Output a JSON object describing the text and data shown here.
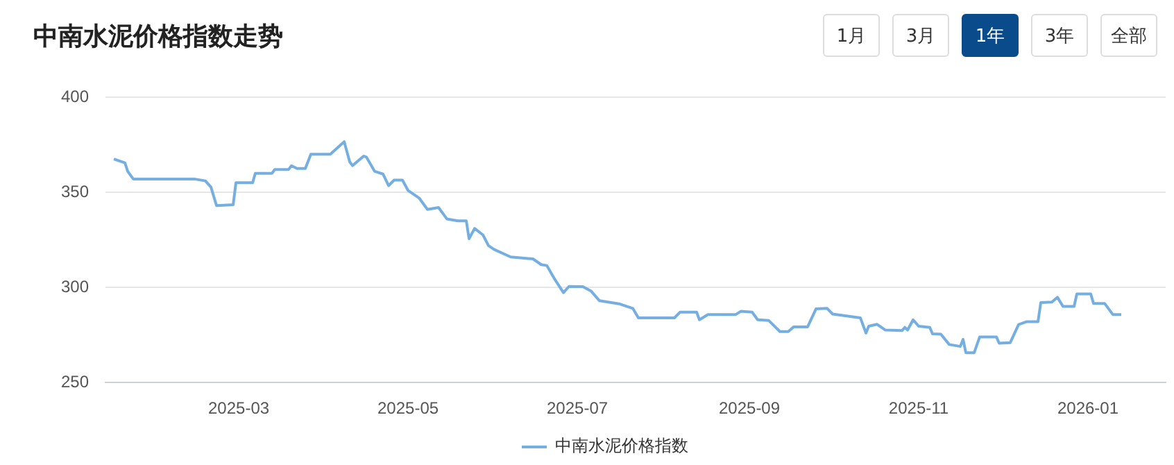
{
  "chart_data": {
    "type": "line",
    "title": "中南水泥价格指数走势",
    "annotations": [
      "1月",
      "3月",
      "1年",
      "3年",
      "全部"
    ],
    "x": [
      "2025-01-15",
      "2025-01-19",
      "2025-01-20",
      "2025-01-22",
      "2025-02-13",
      "2025-02-17",
      "2025-02-19",
      "2025-02-21",
      "2025-02-27",
      "2025-02-28",
      "2025-03-06",
      "2025-03-07",
      "2025-03-13",
      "2025-03-14",
      "2025-03-19",
      "2025-03-20",
      "2025-03-22",
      "2025-03-25",
      "2025-03-27",
      "2025-04-03",
      "2025-04-08",
      "2025-04-10",
      "2025-04-11",
      "2025-04-15",
      "2025-04-16",
      "2025-04-19",
      "2025-04-22",
      "2025-04-24",
      "2025-04-26",
      "2025-04-29",
      "2025-05-01",
      "2025-05-05",
      "2025-05-08",
      "2025-05-12",
      "2025-05-15",
      "2025-05-19",
      "2025-05-22",
      "2025-05-23",
      "2025-05-25",
      "2025-05-28",
      "2025-05-30",
      "2025-06-01",
      "2025-06-07",
      "2025-06-15",
      "2025-06-18",
      "2025-06-20",
      "2025-06-23",
      "2025-06-26",
      "2025-06-28",
      "2025-07-03",
      "2025-07-06",
      "2025-07-09",
      "2025-07-16",
      "2025-07-21",
      "2025-07-23",
      "2025-08-05",
      "2025-08-07",
      "2025-08-13",
      "2025-08-14",
      "2025-08-17",
      "2025-08-27",
      "2025-08-29",
      "2025-09-02",
      "2025-09-04",
      "2025-09-08",
      "2025-09-12",
      "2025-09-15",
      "2025-09-17",
      "2025-09-22",
      "2025-09-25",
      "2025-09-29",
      "2025-10-01",
      "2025-10-11",
      "2025-10-13",
      "2025-10-14",
      "2025-10-17",
      "2025-10-20",
      "2025-10-26",
      "2025-10-27",
      "2025-10-28",
      "2025-10-30",
      "2025-11-01",
      "2025-11-05",
      "2025-11-06",
      "2025-11-09",
      "2025-11-12",
      "2025-11-16",
      "2025-11-17",
      "2025-11-18",
      "2025-11-21",
      "2025-11-23",
      "2025-11-29",
      "2025-11-30",
      "2025-12-04",
      "2025-12-07",
      "2025-12-10",
      "2025-12-14",
      "2025-12-15",
      "2025-12-19",
      "2025-12-21",
      "2025-12-23",
      "2025-12-27",
      "2025-12-28",
      "2026-01-02",
      "2026-01-03",
      "2026-01-07",
      "2026-01-10",
      "2026-01-13"
    ],
    "series": [
      {
        "name": "中南水泥价格指数",
        "color": "#75aee0",
        "values": [
          367.5,
          365.5,
          361,
          357,
          357,
          356,
          352.7,
          343,
          343.5,
          355,
          355,
          360,
          360,
          362,
          362,
          364,
          362.5,
          362.5,
          370,
          370,
          376.6,
          366,
          364,
          369,
          368.5,
          361,
          359.6,
          353.5,
          356.4,
          356.4,
          351,
          347,
          341,
          342,
          336,
          335,
          335,
          325.6,
          331,
          327.6,
          322,
          320,
          316,
          315,
          312,
          311.5,
          304,
          297.3,
          300.5,
          300.4,
          298,
          293,
          291.4,
          289,
          284,
          284,
          287,
          287,
          283,
          285.7,
          285.7,
          287.5,
          287,
          283,
          282.6,
          276.8,
          276.8,
          279.3,
          279.3,
          288.7,
          289,
          286,
          284,
          276,
          279.6,
          280.6,
          277.6,
          277.3,
          279,
          277.6,
          283,
          279.6,
          279,
          275.6,
          275.4,
          270,
          269,
          272.7,
          265.7,
          265.7,
          274,
          274,
          270.7,
          271,
          280.5,
          282,
          282,
          292,
          292.3,
          294.8,
          290,
          290,
          296.6,
          296.6,
          291.6,
          291.6,
          285.7,
          285.7
        ]
      }
    ],
    "xlim": [
      "2025-01-12",
      "2026-01-29"
    ],
    "xticks": [
      "2025-03",
      "2025-05",
      "2025-07",
      "2025-09",
      "2025-11",
      "2026-01"
    ],
    "ylim": [
      250,
      400
    ],
    "yticks": [
      250,
      300,
      350,
      400
    ],
    "grid": "y",
    "legend": "bottom",
    "marker": "none",
    "line_style": "solid"
  }
}
